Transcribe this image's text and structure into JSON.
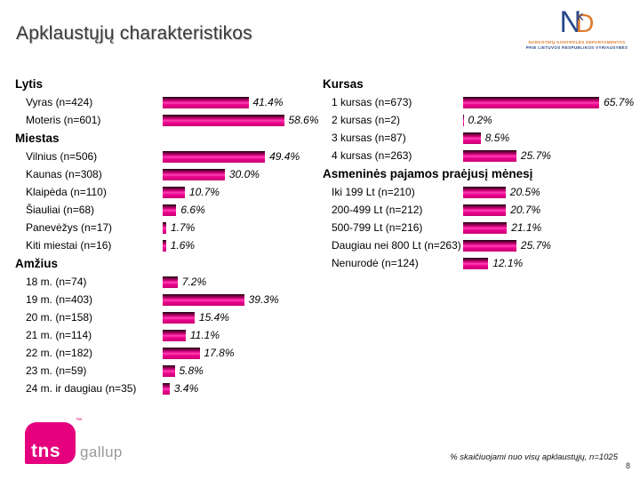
{
  "slide": {
    "title": "Apklaustųjų charakteristikos",
    "footnote": "% skaičiuojami nuo visų apklaustųjų, n=1025",
    "page_number": "8"
  },
  "logos": {
    "nkd": {
      "monogram_n": "N",
      "monogram_k": "k",
      "monogram_d": "D",
      "line1": "NARKOTIKŲ KONTROLĖS DEPARTAMENTAS",
      "line2": "PRIE LIETUVOS RESPUBLIKOS VYRIAUSYBĖS"
    },
    "tns": {
      "box_text": "tns",
      "tm": "™",
      "side_text": "gallup"
    }
  },
  "colors": {
    "bar_accent": "#EC008C",
    "tns_pink": "#E5007D",
    "nkd_blue": "#2B4A8C",
    "nkd_orange": "#E07B2A",
    "title_gray": "#3A3A3A"
  },
  "chart_data": [
    {
      "type": "bar",
      "column": "left",
      "title": "Lytis",
      "unit": "%",
      "xlim": [
        0,
        70
      ],
      "categories": [
        "Vyras (n=424)",
        "Moteris (n=601)"
      ],
      "values": [
        41.4,
        58.6
      ],
      "value_labels": [
        "41.4%",
        "58.6%"
      ]
    },
    {
      "type": "bar",
      "column": "left",
      "title": "Miestas",
      "unit": "%",
      "xlim": [
        0,
        70
      ],
      "categories": [
        "Vilnius (n=506)",
        "Kaunas (n=308)",
        "Klaipėda (n=110)",
        "Šiauliai (n=68)",
        "Panevėžys (n=17)",
        "Kiti miestai (n=16)"
      ],
      "values": [
        49.4,
        30.0,
        10.7,
        6.6,
        1.7,
        1.6
      ],
      "value_labels": [
        "49.4%",
        "30.0%",
        "10.7%",
        "6.6%",
        "1.7%",
        "1.6%"
      ]
    },
    {
      "type": "bar",
      "column": "left",
      "title": "Amžius",
      "unit": "%",
      "xlim": [
        0,
        70
      ],
      "categories": [
        "18 m. (n=74)",
        "19 m. (n=403)",
        "20 m. (n=158)",
        "21 m. (n=114)",
        "22 m. (n=182)",
        "23 m. (n=59)",
        "24 m. ir daugiau (n=35)"
      ],
      "values": [
        7.2,
        39.3,
        15.4,
        11.1,
        17.8,
        5.8,
        3.4
      ],
      "value_labels": [
        "7.2%",
        "39.3%",
        "15.4%",
        "11.1%",
        "17.8%",
        "5.8%",
        "3.4%"
      ]
    },
    {
      "type": "bar",
      "column": "right",
      "title": "Kursas",
      "unit": "%",
      "xlim": [
        0,
        70
      ],
      "categories": [
        "1 kursas (n=673)",
        "2 kursas (n=2)",
        "3 kursas (n=87)",
        "4 kursas (n=263)"
      ],
      "values": [
        65.7,
        0.2,
        8.5,
        25.7
      ],
      "value_labels": [
        "65.7%",
        "0.2%",
        "8.5%",
        "25.7%"
      ]
    },
    {
      "type": "bar",
      "column": "right",
      "title": "Asmeninės pajamos praėjusį mėnesį",
      "unit": "%",
      "xlim": [
        0,
        70
      ],
      "categories": [
        "Iki 199 Lt (n=210)",
        "200-499 Lt (n=212)",
        "500-799 Lt (n=216)",
        "Daugiau nei 800 Lt (n=263)",
        "Nenurodė (n=124)"
      ],
      "values": [
        20.5,
        20.7,
        21.1,
        25.7,
        12.1
      ],
      "value_labels": [
        "20.5%",
        "20.7%",
        "21.1%",
        "25.7%",
        "12.1%"
      ]
    }
  ]
}
